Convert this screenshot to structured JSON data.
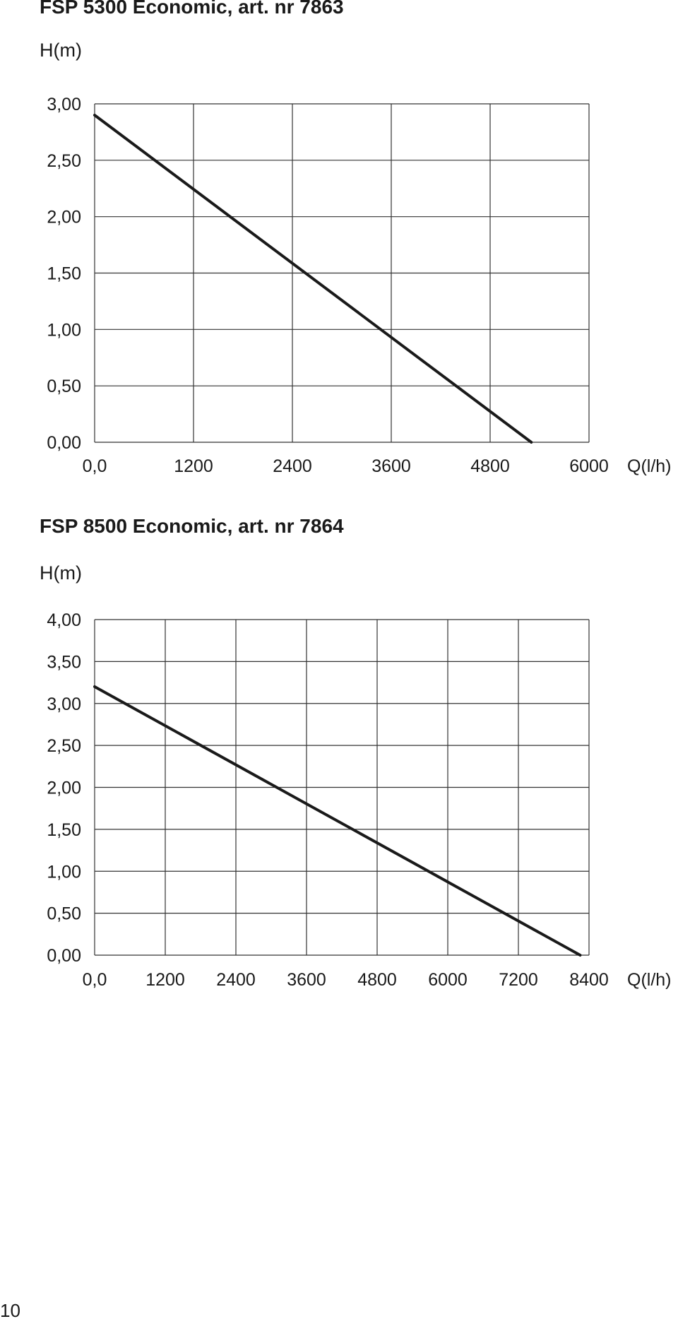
{
  "chart_data": [
    {
      "type": "line",
      "title": "FSP 5300 Economic, art. nr 7863",
      "ylabel": "H(m)",
      "xlabel": "Q(l/h)",
      "x_ticks": [
        "0,0",
        "1200",
        "2400",
        "3600",
        "4800",
        "6000"
      ],
      "y_ticks": [
        "0,00",
        "0,50",
        "1,00",
        "1,50",
        "2,00",
        "2,50",
        "3,00"
      ],
      "xlim": [
        0,
        6000
      ],
      "ylim": [
        0,
        3.0
      ],
      "grid": true,
      "series": [
        {
          "x": [
            0,
            5300
          ],
          "y": [
            2.9,
            0.0
          ]
        }
      ]
    },
    {
      "type": "line",
      "title": "FSP 8500 Economic, art. nr 7864",
      "ylabel": "H(m)",
      "xlabel": "Q(l/h)",
      "x_ticks": [
        "0,0",
        "1200",
        "2400",
        "3600",
        "4800",
        "6000",
        "7200",
        "8400"
      ],
      "y_ticks": [
        "0,00",
        "0,50",
        "1,00",
        "1,50",
        "2,00",
        "2,50",
        "3,00",
        "3,50",
        "4,00"
      ],
      "xlim": [
        0,
        8400
      ],
      "ylim": [
        0,
        4.0
      ],
      "grid": true,
      "series": [
        {
          "x": [
            0,
            8250
          ],
          "y": [
            3.2,
            0.0
          ]
        }
      ]
    }
  ],
  "page_number": "10",
  "colors": {
    "line": "#1a1a1a",
    "grid": "#333333",
    "background": "#ffffff"
  }
}
